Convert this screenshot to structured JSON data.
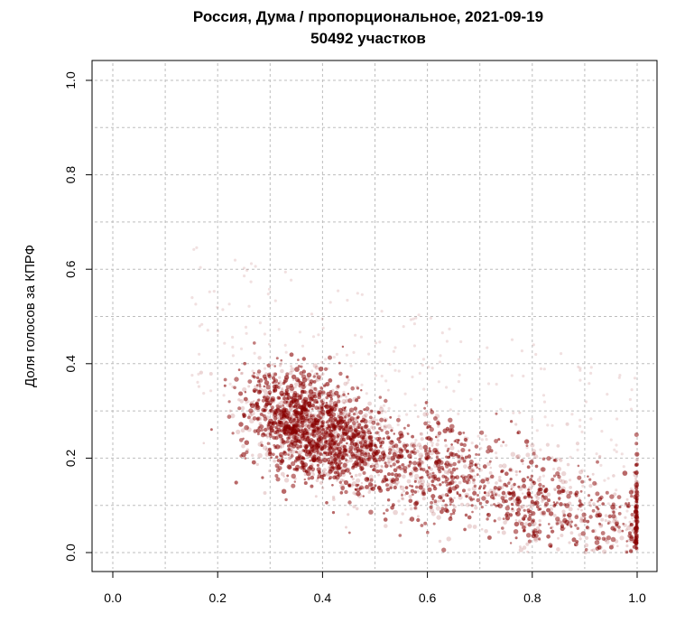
{
  "chart_data": {
    "type": "scatter",
    "title": "Россия, Дума / пропорциональное, 2021-09-19",
    "subtitle": "50492 участков",
    "xlabel": "",
    "ylabel": "Доля голосов за КПРФ",
    "xlim": [
      0.0,
      1.0
    ],
    "ylim": [
      0.0,
      1.0
    ],
    "xticks": [
      "0.0",
      "0.2",
      "0.4",
      "0.6",
      "0.8",
      "1.0"
    ],
    "yticks": [
      "0.0",
      "0.2",
      "0.4",
      "0.6",
      "0.8",
      "1.0"
    ],
    "grid": true,
    "point_color": "#8b0000",
    "density_clusters": [
      {
        "x": 0.36,
        "y": 0.27,
        "weight": 0.42
      },
      {
        "x": 0.47,
        "y": 0.22,
        "weight": 0.18
      },
      {
        "x": 0.62,
        "y": 0.17,
        "weight": 0.14
      },
      {
        "x": 0.8,
        "y": 0.11,
        "weight": 0.13
      },
      {
        "x": 0.96,
        "y": 0.04,
        "weight": 0.09
      },
      {
        "x": 1.0,
        "y": 0.02,
        "weight": 0.04
      }
    ]
  }
}
